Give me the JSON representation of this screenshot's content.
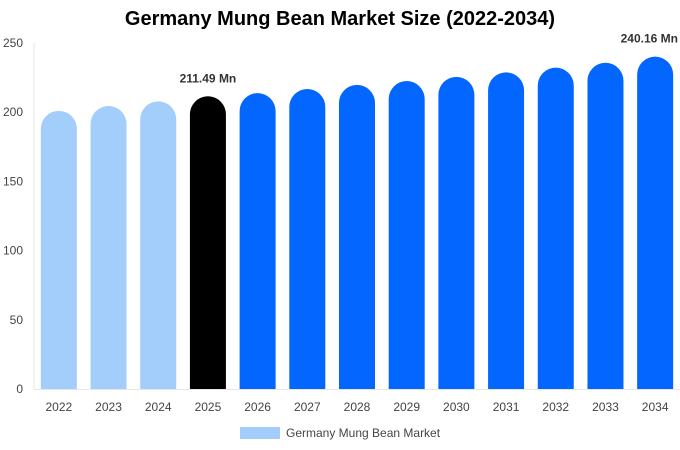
{
  "chart_data": {
    "type": "bar",
    "title": "Germany Mung Bean Market Size (2022-2034)",
    "xlabel": "",
    "ylabel": "",
    "categories": [
      "2022",
      "2023",
      "2024",
      "2025",
      "2026",
      "2027",
      "2028",
      "2029",
      "2030",
      "2031",
      "2032",
      "2033",
      "2034"
    ],
    "series": [
      {
        "name": "Germany Mung Bean Market",
        "values": [
          201.0,
          204.5,
          207.8,
          211.49,
          213.8,
          216.8,
          219.7,
          222.5,
          225.5,
          228.8,
          232.2,
          235.7,
          240.16
        ]
      }
    ],
    "ylim": [
      0,
      250
    ],
    "yticks": [
      0,
      50,
      100,
      150,
      200,
      250
    ],
    "bar_colors": [
      "#a3cdfb",
      "#a3cdfb",
      "#a3cdfb",
      "#000000",
      "#0366ff",
      "#0366ff",
      "#0366ff",
      "#0366ff",
      "#0366ff",
      "#0366ff",
      "#0366ff",
      "#0366ff",
      "#0366ff"
    ],
    "data_labels": [
      {
        "category": "2025",
        "text": "211.49 Mn"
      },
      {
        "category": "2034",
        "text": "240.16 Mn"
      }
    ],
    "legend": {
      "position": "bottom-center",
      "label": "Germany Mung Bean Market",
      "color": "#a3cdfb"
    },
    "grid": false
  }
}
